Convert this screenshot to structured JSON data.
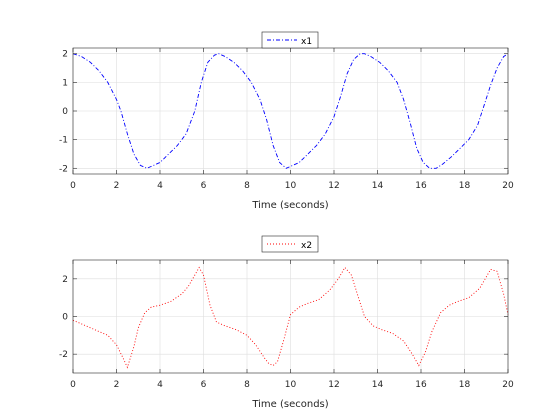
{
  "chart_data": [
    {
      "type": "line",
      "xlabel": "Time (seconds)",
      "ylabel": "",
      "xlim": [
        0,
        20
      ],
      "ylim": [
        -2.2,
        2.2
      ],
      "xticks": [
        0,
        2,
        4,
        6,
        8,
        10,
        12,
        14,
        16,
        18,
        20
      ],
      "yticks": [
        -2,
        -1,
        0,
        1,
        2
      ],
      "grid": true,
      "legend": "top-center",
      "series": [
        {
          "name": "x1",
          "color": "#0000ff",
          "linestyle": "dash-dot",
          "x": [
            0,
            0.4,
            0.8,
            1.2,
            1.6,
            2.0,
            2.2,
            2.5,
            2.8,
            3.1,
            3.4,
            3.7,
            4.0,
            4.4,
            4.8,
            5.2,
            5.6,
            5.9,
            6.2,
            6.5,
            6.7,
            7.0,
            7.4,
            7.8,
            8.2,
            8.6,
            8.9,
            9.2,
            9.5,
            9.8,
            10.1,
            10.4,
            10.8,
            11.2,
            11.6,
            12.0,
            12.3,
            12.6,
            12.9,
            13.2,
            13.4,
            13.7,
            14.1,
            14.5,
            14.9,
            15.2,
            15.5,
            15.8,
            16.1,
            16.4,
            16.7,
            17.0,
            17.4,
            17.8,
            18.2,
            18.6,
            18.9,
            19.2,
            19.5,
            19.8,
            20.0
          ],
          "y": [
            2.0,
            1.9,
            1.7,
            1.4,
            1.0,
            0.4,
            0.0,
            -0.8,
            -1.5,
            -1.9,
            -2.0,
            -1.9,
            -1.8,
            -1.5,
            -1.2,
            -0.8,
            0.0,
            1.0,
            1.7,
            1.95,
            2.0,
            1.9,
            1.7,
            1.4,
            1.0,
            0.4,
            -0.3,
            -1.2,
            -1.8,
            -2.0,
            -1.9,
            -1.8,
            -1.5,
            -1.2,
            -0.8,
            -0.2,
            0.5,
            1.3,
            1.8,
            2.0,
            2.0,
            1.9,
            1.7,
            1.4,
            1.0,
            0.4,
            -0.4,
            -1.3,
            -1.8,
            -2.0,
            -2.0,
            -1.85,
            -1.6,
            -1.3,
            -1.0,
            -0.5,
            0.2,
            0.9,
            1.5,
            1.9,
            2.0
          ]
        }
      ]
    },
    {
      "type": "line",
      "xlabel": "Time (seconds)",
      "ylabel": "",
      "xlim": [
        0,
        20
      ],
      "ylim": [
        -3,
        3
      ],
      "xticks": [
        0,
        2,
        4,
        6,
        8,
        10,
        12,
        14,
        16,
        18,
        20
      ],
      "yticks": [
        -2,
        0,
        2
      ],
      "grid": true,
      "legend": "top-center",
      "series": [
        {
          "name": "x2",
          "color": "#ff0000",
          "linestyle": "dotted",
          "x": [
            0,
            0.4,
            0.8,
            1.2,
            1.6,
            2.0,
            2.3,
            2.5,
            2.8,
            3.0,
            3.3,
            3.6,
            4.0,
            4.5,
            5.0,
            5.3,
            5.6,
            5.8,
            6.0,
            6.3,
            6.6,
            7.0,
            7.5,
            8.0,
            8.4,
            8.8,
            9.0,
            9.2,
            9.4,
            9.7,
            10.0,
            10.4,
            10.8,
            11.3,
            11.8,
            12.2,
            12.5,
            12.8,
            13.1,
            13.4,
            13.8,
            14.2,
            14.7,
            15.2,
            15.6,
            15.9,
            16.2,
            16.5,
            16.9,
            17.3,
            17.7,
            18.2,
            18.7,
            19.0,
            19.2,
            19.5,
            19.8,
            20.0
          ],
          "y": [
            -0.2,
            -0.4,
            -0.6,
            -0.8,
            -1.0,
            -1.5,
            -2.2,
            -2.7,
            -1.6,
            -0.6,
            0.2,
            0.5,
            0.6,
            0.8,
            1.2,
            1.6,
            2.2,
            2.6,
            2.2,
            0.6,
            -0.3,
            -0.5,
            -0.7,
            -1.0,
            -1.5,
            -2.2,
            -2.5,
            -2.6,
            -2.4,
            -1.2,
            0.1,
            0.5,
            0.7,
            0.9,
            1.4,
            2.0,
            2.6,
            2.2,
            1.1,
            0.0,
            -0.5,
            -0.7,
            -0.9,
            -1.3,
            -2.0,
            -2.6,
            -1.9,
            -0.8,
            0.2,
            0.6,
            0.8,
            1.0,
            1.5,
            2.1,
            2.5,
            2.4,
            1.2,
            0.1
          ]
        }
      ]
    }
  ]
}
